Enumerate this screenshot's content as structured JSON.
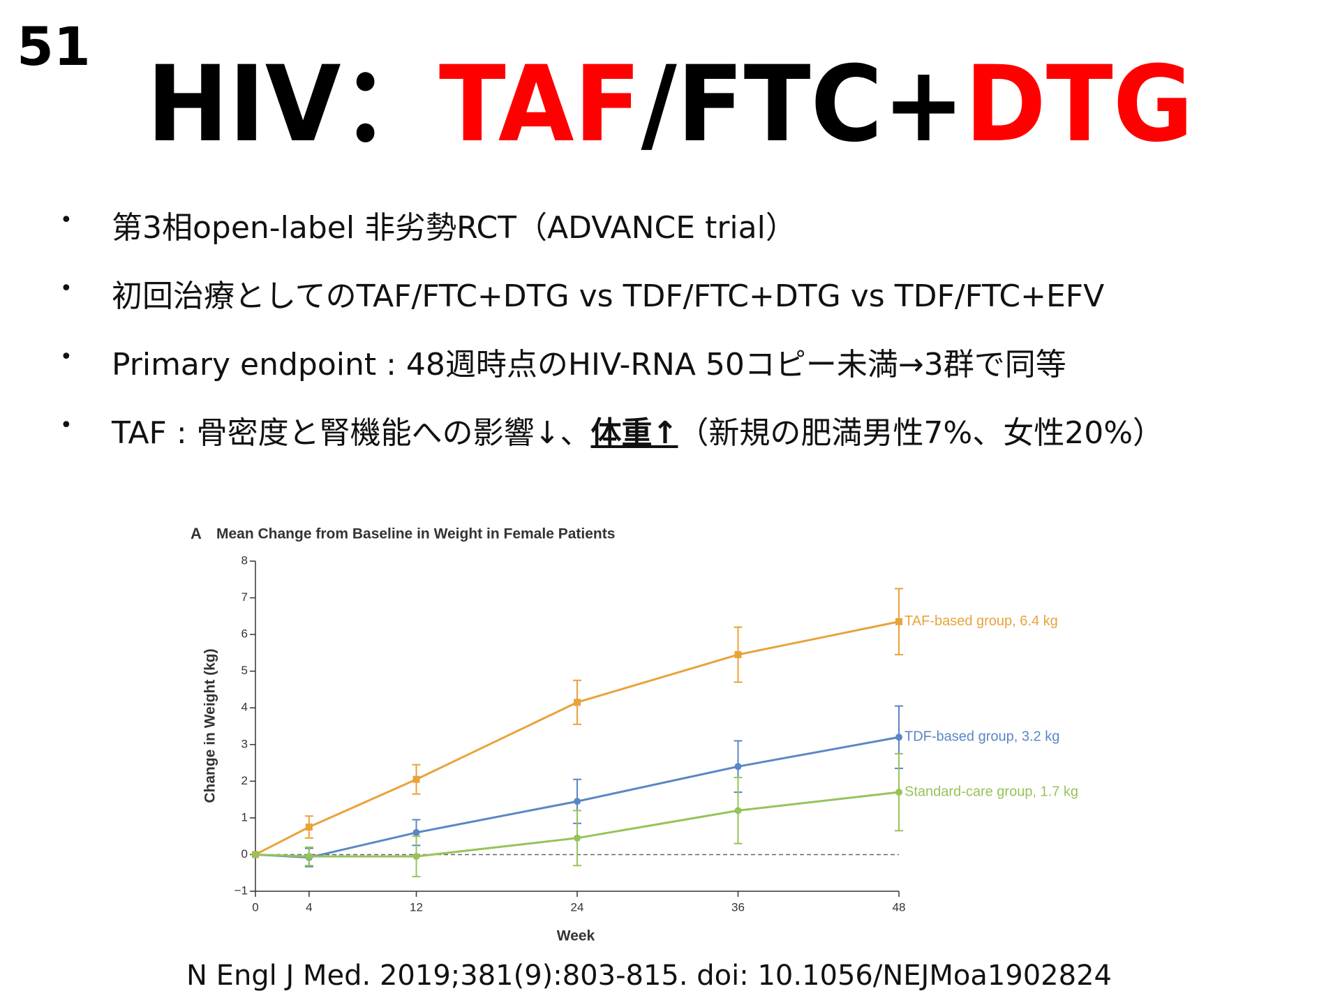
{
  "slide_number": "51",
  "title": [
    {
      "text": "HIV：",
      "color": "#000000"
    },
    {
      "text": "TAF",
      "color": "#ff0000"
    },
    {
      "text": "/FTC+",
      "color": "#000000"
    },
    {
      "text": "DTG",
      "color": "#ff0000"
    }
  ],
  "bullets": [
    [
      {
        "text": "第3相open-label 非劣勢RCT（ADVANCE trial）"
      }
    ],
    [
      {
        "text": "初回治療としてのTAF/FTC+DTG vs TDF/FTC+DTG vs TDF/FTC+EFV"
      }
    ],
    [
      {
        "text": "Primary endpoint : 48週時点のHIV-RNA 50コピー未満→3群で同等"
      }
    ],
    [
      {
        "text": "TAF : 骨密度と腎機能への影響↓、"
      },
      {
        "text": "体重↑",
        "bold": true,
        "underline": true
      },
      {
        "text": "（新規の肥満男性7%、女性20%）"
      }
    ]
  ],
  "chart_data": {
    "type": "line",
    "panel_label": "A",
    "title": "Mean Change from Baseline in Weight in Female Patients",
    "x_label": "Week",
    "y_label": "Change in Weight (kg)",
    "x": [
      0,
      4,
      12,
      24,
      36,
      48
    ],
    "xlim": [
      0,
      48
    ],
    "xticks": [
      0,
      4,
      12,
      24,
      36,
      48
    ],
    "ylim": [
      -1,
      8
    ],
    "yticks": [
      {
        "value": -1,
        "label": "−1"
      },
      0,
      1,
      2,
      3,
      4,
      5,
      6,
      7,
      8
    ],
    "reference_line": 0,
    "series": [
      {
        "name": "TAF-based group, 6.4 kg",
        "color": "#e8a33a",
        "marker": "square",
        "values": [
          0,
          0.75,
          2.05,
          4.15,
          5.45,
          6.35
        ],
        "errors": [
          0,
          0.3,
          0.4,
          0.6,
          0.75,
          0.9
        ]
      },
      {
        "name": "TDF-based group, 3.2 kg",
        "color": "#5b86c5",
        "marker": "circle",
        "values": [
          0,
          -0.08,
          0.6,
          1.45,
          2.4,
          3.2
        ],
        "errors": [
          0,
          0.25,
          0.35,
          0.6,
          0.7,
          0.85
        ]
      },
      {
        "name": "Standard-care group, 1.7 kg",
        "color": "#96c35a",
        "marker": "circle",
        "values": [
          0,
          -0.05,
          -0.05,
          0.45,
          1.2,
          1.7
        ],
        "errors": [
          0,
          0.25,
          0.55,
          0.75,
          0.9,
          1.05
        ]
      }
    ]
  },
  "citation": "N Engl J Med. 2019;381(9):803-815. doi: 10.1056/NEJMoa1902824"
}
